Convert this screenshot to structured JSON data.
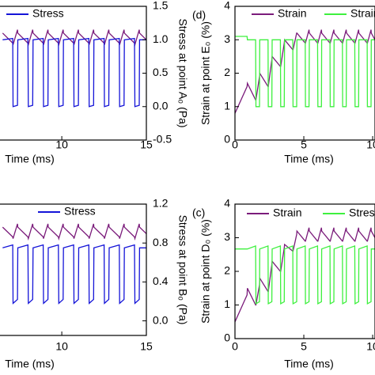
{
  "chart_data": [
    {
      "type": "line",
      "x": [
        6.5,
        7.1,
        7.12,
        7.38,
        7.4,
        8.0,
        8.02,
        8.28,
        8.3,
        8.9,
        8.92,
        9.18,
        9.2,
        9.8,
        9.82,
        10.08,
        10.1,
        10.7,
        10.72,
        10.98,
        11.0,
        11.6,
        11.62,
        11.88,
        11.9,
        12.5,
        12.52,
        12.78,
        12.8,
        13.4,
        13.42,
        13.68,
        13.7,
        14.3,
        14.32,
        14.58,
        14.6,
        15.0
      ],
      "xlim": [
        6.3,
        15
      ],
      "xticks": [
        10,
        15
      ],
      "xlabel": "Time (ms)",
      "ylim": [
        0,
        4
      ],
      "y2lim": [
        -0.5,
        1.5
      ],
      "y2ticks": [
        {
          "value": 1.5,
          "label": "1.5"
        },
        {
          "value": 1,
          "label": "1.0"
        },
        {
          "value": 0.5,
          "label": "0.5"
        },
        {
          "value": 0,
          "label": "0.0"
        },
        {
          "value": -0.5,
          "label": "-0.5"
        }
      ],
      "y2label": "Stress at point A₀ (Pa)",
      "series": [
        {
          "color": "#7b1c7b",
          "values": [
            3.2,
            2.9,
            2.85,
            3.3,
            3.2,
            2.9,
            2.85,
            3.3,
            3.2,
            2.9,
            2.85,
            3.3,
            3.2,
            2.9,
            2.85,
            3.3,
            3.2,
            2.9,
            2.85,
            3.3,
            3.2,
            2.9,
            2.85,
            3.3,
            3.2,
            2.9,
            2.85,
            3.3,
            3.2,
            2.9,
            2.85,
            3.3,
            3.2,
            2.9,
            2.85,
            3.3,
            3.2,
            3.0
          ]
        },
        {
          "name": "Stress",
          "color": "#1414d8",
          "axis": "y2",
          "values": [
            1.0,
            1.02,
            0.0,
            0.02,
            1.0,
            1.02,
            0.0,
            0.02,
            1.0,
            1.02,
            0.0,
            0.02,
            1.0,
            1.02,
            0.0,
            0.02,
            1.0,
            1.02,
            0.0,
            0.02,
            1.0,
            1.02,
            0.0,
            0.02,
            1.0,
            1.02,
            0.0,
            0.02,
            1.0,
            1.02,
            0.0,
            0.02,
            1.0,
            1.02,
            0.0,
            0.02,
            1.0,
            1.0
          ]
        }
      ]
    },
    {
      "type": "line",
      "panel_label": "(d)",
      "x": [
        0,
        0.88,
        0.9,
        1.5,
        1.52,
        1.78,
        1.8,
        2.4,
        2.42,
        2.68,
        2.7,
        3.3,
        3.32,
        3.58,
        3.6,
        4.2,
        4.22,
        4.48,
        4.5,
        5.1,
        5.12,
        5.38,
        5.4,
        6.0,
        6.02,
        6.28,
        6.3,
        6.9,
        6.92,
        7.18,
        7.2,
        7.8,
        7.82,
        8.08,
        8.1,
        8.7,
        8.72,
        8.98,
        9.0,
        9.6,
        9.62,
        9.88,
        9.9,
        10.17
      ],
      "xlim": [
        0,
        10.17
      ],
      "xticks": [
        0,
        5,
        10
      ],
      "xlabel": "Time (ms)",
      "ylim": [
        0,
        4
      ],
      "yticks": [
        0,
        1,
        2,
        3,
        4
      ],
      "ylabel": "Strain at point E₀ (%)",
      "y2lim": [
        -0.5,
        1.5
      ],
      "series": [
        {
          "name": "Strain",
          "color": "#7b1c7b",
          "values": [
            0.8,
            1.6,
            1.7,
            1.2,
            1.2,
            1.9,
            2.0,
            1.6,
            1.6,
            2.4,
            2.5,
            2.2,
            2.2,
            2.9,
            3.0,
            2.7,
            2.7,
            3.2,
            3.2,
            2.9,
            2.9,
            3.3,
            3.2,
            2.9,
            2.9,
            3.3,
            3.2,
            2.9,
            2.9,
            3.3,
            3.2,
            2.9,
            2.9,
            3.3,
            3.2,
            2.9,
            2.9,
            3.3,
            3.2,
            2.9,
            2.9,
            3.3,
            3.2,
            3.0
          ]
        },
        {
          "name": "Strain",
          "color": "#3ef03e",
          "axis": "y2",
          "values": [
            1.05,
            1.05,
            1.0,
            1.0,
            0.0,
            0.0,
            1.0,
            1.0,
            0.0,
            0.0,
            1.0,
            1.0,
            0.0,
            0.0,
            1.0,
            1.0,
            0.0,
            0.0,
            1.0,
            1.0,
            0.0,
            0.0,
            1.0,
            1.0,
            0.0,
            0.0,
            1.0,
            1.0,
            0.0,
            0.0,
            1.0,
            1.0,
            0.0,
            0.0,
            1.0,
            1.0,
            0.0,
            0.0,
            1.0,
            1.0,
            0.0,
            0.0,
            1.0,
            1.0
          ]
        }
      ]
    },
    {
      "type": "line",
      "x": [
        6.5,
        7.1,
        7.12,
        7.38,
        7.4,
        8.0,
        8.02,
        8.28,
        8.3,
        8.9,
        8.92,
        9.18,
        9.2,
        9.8,
        9.82,
        10.08,
        10.1,
        10.7,
        10.72,
        10.98,
        11.0,
        11.6,
        11.62,
        11.88,
        11.9,
        12.5,
        12.52,
        12.78,
        12.8,
        13.4,
        13.42,
        13.68,
        13.7,
        14.3,
        14.32,
        14.58,
        14.6,
        15.0
      ],
      "xlim": [
        6.3,
        15
      ],
      "xticks": [
        10,
        15
      ],
      "xlabel": "Time (ms)",
      "ylim": [
        0,
        4
      ],
      "y2lim": [
        -0.15,
        1.2
      ],
      "y2ticks": [
        {
          "value": 1.2,
          "label": "1.2"
        },
        {
          "value": 0.8,
          "label": "0.8"
        },
        {
          "value": 0.4,
          "label": "0.4"
        },
        {
          "value": 0,
          "label": "0.0"
        }
      ],
      "y2label": "Stress at point B₀ (Pa)",
      "series": [
        {
          "color": "#7b1c7b",
          "values": [
            3.3,
            3.0,
            2.95,
            3.4,
            3.3,
            3.0,
            2.95,
            3.4,
            3.3,
            3.0,
            2.95,
            3.4,
            3.3,
            3.0,
            2.95,
            3.4,
            3.3,
            3.0,
            2.95,
            3.4,
            3.3,
            3.0,
            2.95,
            3.4,
            3.3,
            3.0,
            2.95,
            3.4,
            3.3,
            3.0,
            2.95,
            3.4,
            3.3,
            3.0,
            2.95,
            3.4,
            3.3,
            3.1
          ]
        },
        {
          "name": "Stress",
          "color": "#1414d8",
          "axis": "y2",
          "values": [
            0.75,
            0.78,
            0.18,
            0.22,
            0.75,
            0.78,
            0.18,
            0.22,
            0.75,
            0.78,
            0.18,
            0.22,
            0.75,
            0.78,
            0.18,
            0.22,
            0.75,
            0.78,
            0.18,
            0.22,
            0.75,
            0.78,
            0.18,
            0.22,
            0.75,
            0.78,
            0.18,
            0.22,
            0.75,
            0.78,
            0.18,
            0.22,
            0.75,
            0.78,
            0.18,
            0.22,
            0.75,
            0.75
          ]
        }
      ]
    },
    {
      "type": "line",
      "panel_label": "(c)",
      "x": [
        0,
        0.88,
        0.9,
        1.5,
        1.52,
        1.78,
        1.8,
        2.4,
        2.42,
        2.68,
        2.7,
        3.3,
        3.32,
        3.58,
        3.6,
        4.2,
        4.22,
        4.48,
        4.5,
        5.1,
        5.12,
        5.38,
        5.4,
        6.0,
        6.02,
        6.28,
        6.3,
        6.9,
        6.92,
        7.18,
        7.2,
        7.8,
        7.82,
        8.08,
        8.1,
        8.7,
        8.72,
        8.98,
        9.0,
        9.6,
        9.62,
        9.88,
        9.9,
        10.17
      ],
      "xlim": [
        0,
        10.17
      ],
      "xticks": [
        0,
        5,
        10
      ],
      "xlabel": "Time (ms)",
      "ylim": [
        0,
        4
      ],
      "yticks": [
        0,
        1,
        2,
        3,
        4
      ],
      "ylabel": "Strain at point D₀ (%)",
      "y2lim": [
        -0.15,
        1.2
      ],
      "series": [
        {
          "name": "Strain",
          "color": "#7b1c7b",
          "values": [
            0.5,
            1.3,
            1.5,
            1.0,
            1.0,
            1.6,
            1.8,
            1.4,
            1.4,
            2.2,
            2.3,
            2.0,
            2.0,
            2.7,
            2.8,
            2.6,
            2.6,
            3.1,
            3.2,
            2.9,
            2.9,
            3.3,
            3.2,
            2.9,
            2.9,
            3.3,
            3.2,
            2.9,
            2.9,
            3.3,
            3.2,
            2.9,
            2.9,
            3.3,
            3.2,
            2.9,
            2.9,
            3.3,
            3.2,
            2.9,
            2.9,
            3.3,
            3.2,
            3.0
          ]
        },
        {
          "name": "Stress",
          "color": "#3ef03e",
          "axis": "y2",
          "values": [
            0.75,
            0.75,
            0.75,
            0.78,
            0.2,
            0.22,
            0.75,
            0.78,
            0.2,
            0.22,
            0.75,
            0.78,
            0.2,
            0.22,
            0.75,
            0.78,
            0.2,
            0.22,
            0.75,
            0.78,
            0.2,
            0.22,
            0.75,
            0.78,
            0.2,
            0.22,
            0.75,
            0.78,
            0.2,
            0.22,
            0.75,
            0.78,
            0.2,
            0.22,
            0.75,
            0.78,
            0.2,
            0.22,
            0.75,
            0.78,
            0.2,
            0.22,
            0.75,
            0.75
          ]
        }
      ]
    }
  ]
}
